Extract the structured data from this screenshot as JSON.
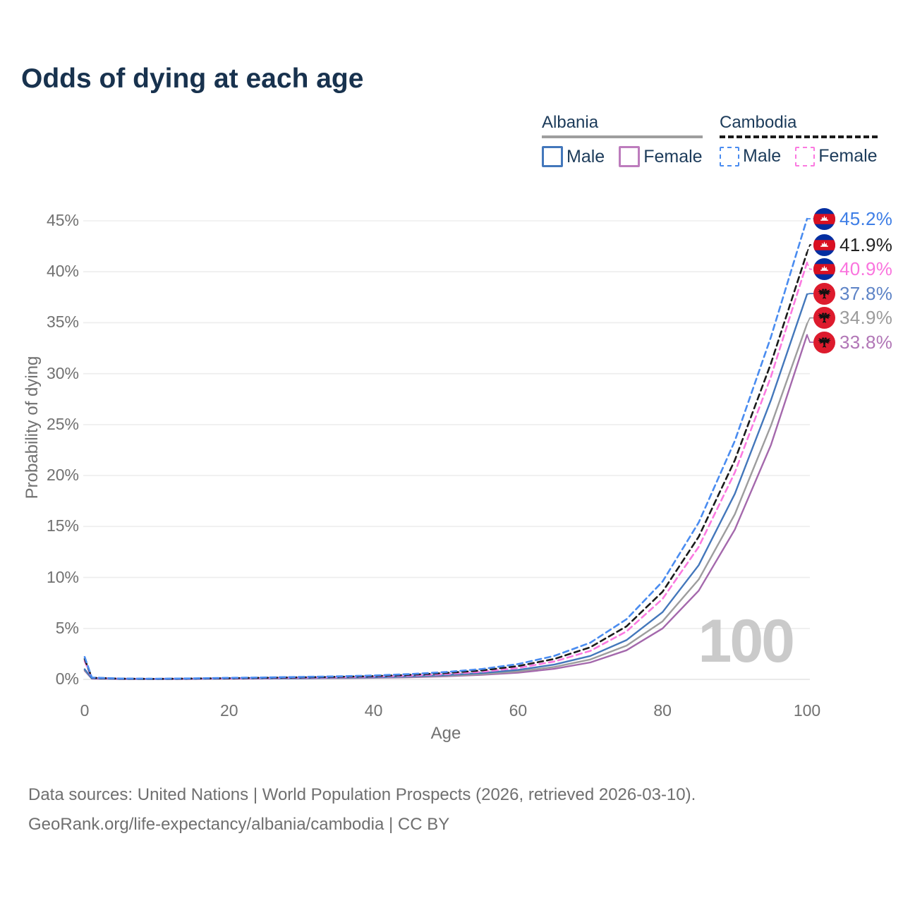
{
  "title": "Odds of dying at each age",
  "watermark_hovered_age": "100",
  "legend": {
    "groups": [
      {
        "country": "Albania",
        "line_style": "solid",
        "underline_color": "#9e9e9e",
        "items": [
          {
            "label": "Male",
            "color": "#4377bb",
            "dashed": false
          },
          {
            "label": "Female",
            "color": "#bd7cbd",
            "dashed": false
          }
        ]
      },
      {
        "country": "Cambodia",
        "line_style": "dashed",
        "underline_color": "#1b1b1b",
        "items": [
          {
            "label": "Male",
            "color": "#4a8cf0",
            "dashed": true
          },
          {
            "label": "Female",
            "color": "#fb79e0",
            "dashed": true
          }
        ]
      }
    ]
  },
  "chart_data": {
    "type": "line",
    "title": "Odds of dying at each age",
    "xlabel": "Age",
    "ylabel": "Probability of dying",
    "xlim": [
      0,
      100
    ],
    "ylim": [
      0,
      45
    ],
    "x_ticks": [
      0,
      20,
      40,
      60,
      80,
      100
    ],
    "y_ticks": [
      0,
      5,
      10,
      15,
      20,
      25,
      30,
      35,
      40,
      45
    ],
    "y_tick_labels": [
      "0%",
      "5%",
      "10%",
      "15%",
      "20%",
      "25%",
      "30%",
      "35%",
      "40%",
      "45%"
    ],
    "grid": "horizontal",
    "legend_position": "top-right",
    "x": [
      0,
      1,
      5,
      10,
      15,
      20,
      25,
      30,
      35,
      40,
      45,
      50,
      55,
      60,
      65,
      70,
      75,
      80,
      85,
      90,
      95,
      100
    ],
    "series": [
      {
        "name": "Cambodia Male",
        "country": "Cambodia",
        "sex": "Male",
        "dashed": true,
        "line_color": "#4a8cf0",
        "label_color": "#3e7ee6",
        "flag": "cambodia",
        "end_label": "45.2%",
        "values": [
          2.2,
          0.18,
          0.08,
          0.06,
          0.1,
          0.15,
          0.19,
          0.24,
          0.3,
          0.38,
          0.52,
          0.72,
          1.02,
          1.5,
          2.3,
          3.6,
          5.9,
          9.6,
          15.4,
          23.4,
          33.6,
          45.2
        ]
      },
      {
        "name": "Cambodia Both sexes",
        "country": "Cambodia",
        "sex": "Both",
        "dashed": true,
        "line_color": "#1b1b1b",
        "label_color": "#222222",
        "flag": "cambodia",
        "end_label": "41.9%",
        "values": [
          2.0,
          0.16,
          0.07,
          0.05,
          0.08,
          0.12,
          0.16,
          0.2,
          0.25,
          0.32,
          0.44,
          0.62,
          0.88,
          1.3,
          2.0,
          3.15,
          5.2,
          8.6,
          14.0,
          21.5,
          31.0,
          41.9
        ]
      },
      {
        "name": "Cambodia Female",
        "country": "Cambodia",
        "sex": "Female",
        "dashed": true,
        "line_color": "#fb79e0",
        "label_color": "#fa74de",
        "flag": "cambodia",
        "end_label": "40.9%",
        "values": [
          1.8,
          0.14,
          0.06,
          0.05,
          0.07,
          0.1,
          0.13,
          0.17,
          0.21,
          0.28,
          0.37,
          0.52,
          0.75,
          1.12,
          1.75,
          2.8,
          4.7,
          7.9,
          13.0,
          20.3,
          29.7,
          40.9
        ]
      },
      {
        "name": "Albania Male",
        "country": "Albania",
        "sex": "Male",
        "dashed": false,
        "line_color": "#4377bb",
        "label_color": "#5d83c6",
        "flag": "albania",
        "end_label": "37.8%",
        "values": [
          1.0,
          0.09,
          0.04,
          0.03,
          0.05,
          0.08,
          0.1,
          0.12,
          0.16,
          0.21,
          0.29,
          0.42,
          0.62,
          0.93,
          1.45,
          2.3,
          3.85,
          6.6,
          11.2,
          18.2,
          27.4,
          37.8
        ]
      },
      {
        "name": "Albania Both sexes",
        "country": "Albania",
        "sex": "Both",
        "dashed": false,
        "line_color": "#9d9d9d",
        "label_color": "#9b9b9b",
        "flag": "albania",
        "end_label": "34.9%",
        "values": [
          0.92,
          0.08,
          0.035,
          0.027,
          0.045,
          0.07,
          0.088,
          0.105,
          0.135,
          0.18,
          0.25,
          0.36,
          0.52,
          0.78,
          1.22,
          1.95,
          3.3,
          5.7,
          9.8,
          16.2,
          24.9,
          34.9
        ]
      },
      {
        "name": "Albania Female",
        "country": "Albania",
        "sex": "Female",
        "dashed": false,
        "line_color": "#a468ac",
        "label_color": "#b176b6",
        "flag": "albania",
        "end_label": "33.8%",
        "values": [
          0.85,
          0.07,
          0.03,
          0.024,
          0.04,
          0.06,
          0.075,
          0.09,
          0.115,
          0.15,
          0.21,
          0.3,
          0.44,
          0.66,
          1.03,
          1.66,
          2.85,
          5.0,
          8.7,
          14.7,
          23.0,
          33.8
        ]
      }
    ]
  },
  "colors": {
    "title_text": "#18324e",
    "legend_text": "#1c3b5a",
    "tick_text": "#717171",
    "gridline": "#ededed",
    "watermark": "#cacaca",
    "cambodia_flag_blue": "#032ea1",
    "cambodia_flag_red": "#da1021",
    "albania_flag_red": "#dd1b2d"
  },
  "footer": {
    "line1": "Data sources: United Nations | World Population Prospects (2026, retrieved 2026-03-10).",
    "line2": "GeoRank.org/life-expectancy/albania/cambodia | CC BY"
  }
}
